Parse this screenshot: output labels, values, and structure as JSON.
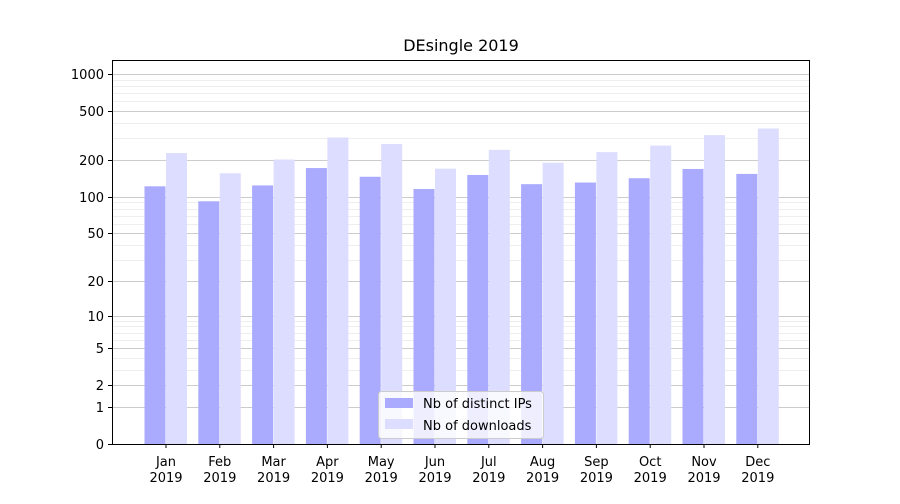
{
  "chart_data": {
    "type": "bar",
    "title": "DEsingle 2019",
    "xlabel": "",
    "ylabel": "",
    "yscale": "symlog",
    "ylim": [
      0,
      1300
    ],
    "yticks": [
      0,
      1,
      2,
      5,
      10,
      20,
      50,
      100,
      200,
      500,
      1000
    ],
    "ytick_labels": [
      "0",
      "1",
      "2",
      "5",
      "10",
      "20",
      "50",
      "100",
      "200",
      "500",
      "1000"
    ],
    "grid": true,
    "legend_position": "bottom-center",
    "categories": [
      [
        "Jan",
        "2019"
      ],
      [
        "Feb",
        "2019"
      ],
      [
        "Mar",
        "2019"
      ],
      [
        "Apr",
        "2019"
      ],
      [
        "May",
        "2019"
      ],
      [
        "Jun",
        "2019"
      ],
      [
        "Jul",
        "2019"
      ],
      [
        "Aug",
        "2019"
      ],
      [
        "Sep",
        "2019"
      ],
      [
        "Oct",
        "2019"
      ],
      [
        "Nov",
        "2019"
      ],
      [
        "Dec",
        "2019"
      ]
    ],
    "series": [
      {
        "name": "Nb of distinct IPs",
        "color": "#aaaaff",
        "values": [
          122,
          92,
          124,
          172,
          146,
          116,
          151,
          127,
          131,
          142,
          169,
          154
        ]
      },
      {
        "name": "Nb of downloads",
        "color": "#ddddff",
        "values": [
          228,
          156,
          202,
          305,
          270,
          170,
          242,
          190,
          232,
          262,
          319,
          361
        ]
      }
    ]
  }
}
